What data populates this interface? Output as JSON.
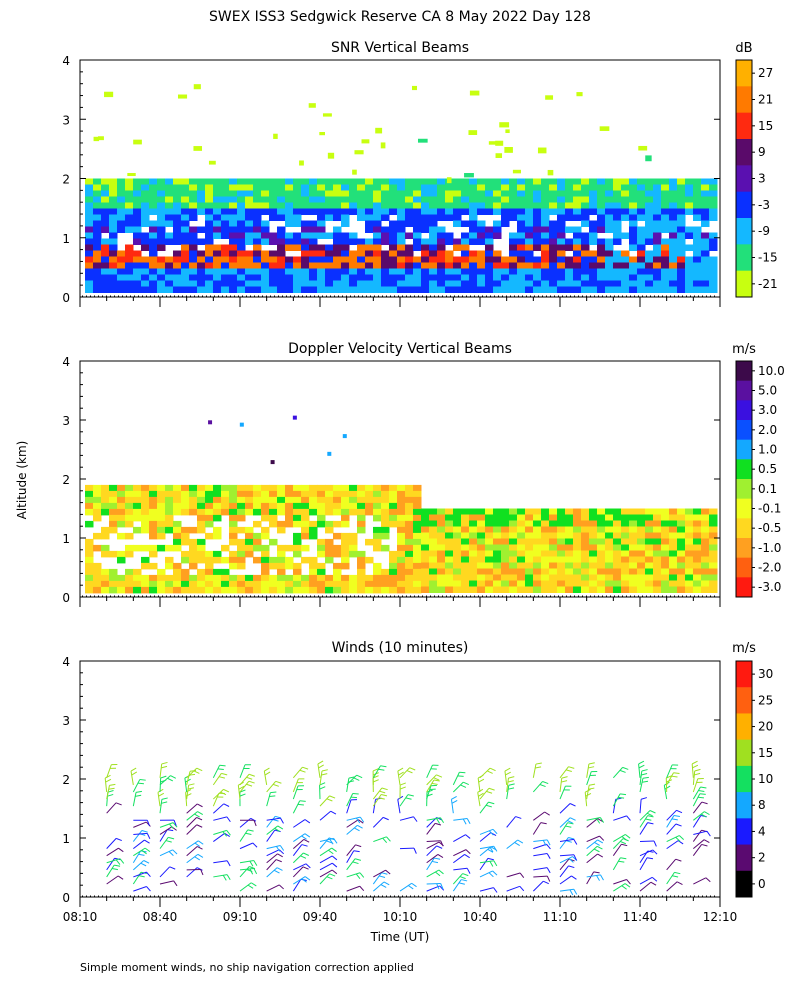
{
  "title": "SWEX ISS3 Sedgwick Reserve CA   8 May 2022 Day 128",
  "ylabel": "Altitude (km)",
  "xlabel": "Time (UT)",
  "footnote": "Simple moment winds, no ship navigation correction applied",
  "x_ticks": [
    "08:10",
    "08:40",
    "09:10",
    "09:40",
    "10:10",
    "10:40",
    "11:10",
    "11:40",
    "12:10"
  ],
  "y_ticks": [
    "0",
    "1",
    "2",
    "3",
    "4"
  ],
  "chart_data": [
    {
      "type": "heatmap",
      "title": "SNR Vertical Beams",
      "units": "dB",
      "xlim": [
        "08:10",
        "12:10"
      ],
      "ylim": [
        0,
        4
      ],
      "colorbar": {
        "labels": [
          "27",
          "21",
          "15",
          "9",
          "3",
          "-3",
          "-9",
          "-15",
          "-21"
        ],
        "colors": [
          "#ffb000",
          "#ff7a00",
          "#ff2a10",
          "#5a0a6a",
          "#5a10b0",
          "#0a30ff",
          "#14b8ff",
          "#22e07a",
          "#c8ff10"
        ]
      },
      "description_of_data": "Strong returns 0.2-1.9 km across full period; max SNR near 0.6-0.9 km",
      "layers": [
        {
          "name": "",
          "alt_range_km": [
            1.55,
            1.95
          ],
          "snr_db": -15
        },
        {
          "name": "",
          "alt_range_km": [
            1.2,
            1.6
          ],
          "snr_db": -3
        },
        {
          "name": "",
          "alt_range_km": [
            0.2,
            1.2
          ],
          "snr_db": 3
        },
        {
          "name": "",
          "alt_range_km": [
            0.55,
            0.95
          ],
          "snr_db": 15
        }
      ]
    },
    {
      "type": "heatmap",
      "title": "Doppler Velocity Vertical Beams",
      "units": "m/s",
      "xlim": [
        "08:10",
        "12:10"
      ],
      "ylim": [
        0,
        4
      ],
      "colorbar": {
        "labels": [
          "10.0",
          "5.0",
          "3.0",
          "2.0",
          "1.0",
          "0.5",
          "0.1",
          "-0.1",
          "-0.5",
          "-1.0",
          "-2.0",
          "-3.0"
        ],
        "colors": [
          "#3c0a4a",
          "#5a10a0",
          "#3a10e0",
          "#0a50ff",
          "#14a8ff",
          "#10e020",
          "#a0f030",
          "#f0ff20",
          "#ffd820",
          "#ffa020",
          "#ff6010",
          "#ff1a10"
        ]
      },
      "description_of_data": "Mostly weak (-0.5 to 0.1 m/s) vertical velocities below 1.9 km"
    },
    {
      "type": "wind_barbs",
      "title": "Winds (10 minutes)",
      "units": "m/s",
      "xlim": [
        "08:10",
        "12:10"
      ],
      "ylim": [
        0,
        4
      ],
      "colorbar": {
        "labels": [
          "30",
          "25",
          "20",
          "15",
          "10",
          "8",
          "4",
          "2",
          "0"
        ],
        "colors": [
          "#ff1a10",
          "#ff6010",
          "#ffb000",
          "#a0e020",
          "#14e060",
          "#14a8ff",
          "#1a1aff",
          "#5a0a70",
          "#000000"
        ]
      },
      "description_of_data": "Profiles every 10 minutes from ~0.1 to 2.2 km, mostly 2-15 m/s"
    }
  ]
}
